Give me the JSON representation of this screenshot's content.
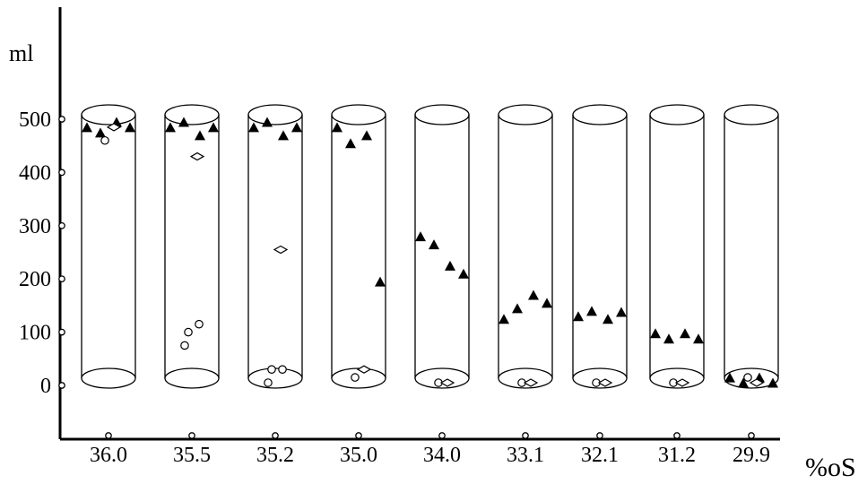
{
  "chart_data": {
    "type": "scatter",
    "xlabel": "%oS",
    "ylabel": "ml",
    "ylim": [
      0,
      500
    ],
    "yticks": [
      0,
      100,
      200,
      300,
      400,
      500
    ],
    "categories": [
      "36.0",
      "35.5",
      "35.2",
      "35.0",
      "34.0",
      "33.1",
      "32.1",
      "31.2",
      "29.9"
    ],
    "series": [
      {
        "marker": "filled-triangle",
        "points": [
          [
            "36.0",
            485
          ],
          [
            "36.0",
            475
          ],
          [
            "36.0",
            495
          ],
          [
            "36.0",
            485
          ],
          [
            "35.5",
            485
          ],
          [
            "35.5",
            495
          ],
          [
            "35.5",
            470
          ],
          [
            "35.5",
            485
          ],
          [
            "35.2",
            485
          ],
          [
            "35.2",
            495
          ],
          [
            "35.2",
            470
          ],
          [
            "35.2",
            485
          ],
          [
            "35.0",
            485
          ],
          [
            "35.0",
            455
          ],
          [
            "35.0",
            470
          ],
          [
            "35.0",
            195
          ],
          [
            "34.0",
            280
          ],
          [
            "34.0",
            265
          ],
          [
            "34.0",
            225
          ],
          [
            "34.0",
            210
          ],
          [
            "33.1",
            125
          ],
          [
            "33.1",
            145
          ],
          [
            "33.1",
            170
          ],
          [
            "33.1",
            155
          ],
          [
            "32.1",
            130
          ],
          [
            "32.1",
            140
          ],
          [
            "32.1",
            125
          ],
          [
            "32.1",
            138
          ],
          [
            "31.2",
            98
          ],
          [
            "31.2",
            88
          ],
          [
            "31.2",
            98
          ],
          [
            "31.2",
            88
          ],
          [
            "29.9",
            15
          ],
          [
            "29.9",
            5
          ],
          [
            "29.9",
            15
          ],
          [
            "29.9",
            5
          ]
        ]
      },
      {
        "marker": "open-circle",
        "points": [
          [
            "36.0",
            460
          ],
          [
            "35.5",
            100
          ],
          [
            "35.5",
            115
          ],
          [
            "35.5",
            75
          ],
          [
            "35.2",
            30
          ],
          [
            "35.2",
            30
          ],
          [
            "35.2",
            5
          ],
          [
            "35.0",
            15
          ],
          [
            "34.0",
            5
          ],
          [
            "33.1",
            5
          ],
          [
            "32.1",
            5
          ],
          [
            "31.2",
            5
          ],
          [
            "29.9",
            15
          ]
        ]
      },
      {
        "marker": "open-diamond",
        "points": [
          [
            "36.0",
            485
          ],
          [
            "35.5",
            430
          ],
          [
            "35.2",
            255
          ],
          [
            "35.0",
            30
          ],
          [
            "34.0",
            5
          ],
          [
            "33.1",
            5
          ],
          [
            "32.1",
            5
          ],
          [
            "31.2",
            5
          ],
          [
            "29.9",
            5
          ]
        ]
      }
    ]
  }
}
